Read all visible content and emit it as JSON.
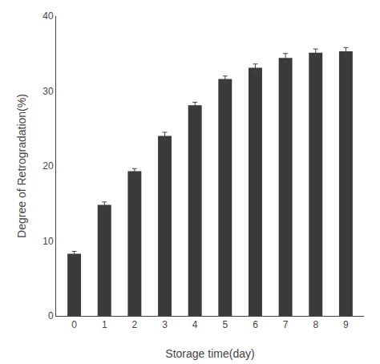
{
  "chart_data": {
    "type": "bar",
    "x": [
      0,
      1,
      2,
      3,
      4,
      5,
      6,
      7,
      8,
      9
    ],
    "values": [
      8.3,
      14.8,
      19.3,
      24.0,
      28.1,
      31.6,
      33.1,
      34.4,
      35.1,
      35.3
    ],
    "errors": [
      0.3,
      0.4,
      0.35,
      0.5,
      0.4,
      0.4,
      0.5,
      0.6,
      0.5,
      0.5
    ],
    "color": "#3a3a3a",
    "xlabel": "Storage time(day)",
    "ylabel": "Degree of Retrogradation(%)",
    "xlim": [
      -0.6,
      9.6
    ],
    "xticks": [
      0,
      1,
      2,
      3,
      4,
      5,
      6,
      7,
      8,
      9
    ],
    "ylim": [
      0,
      40
    ],
    "yticks": [
      0,
      10,
      20,
      30,
      40
    ],
    "grid": false
  }
}
